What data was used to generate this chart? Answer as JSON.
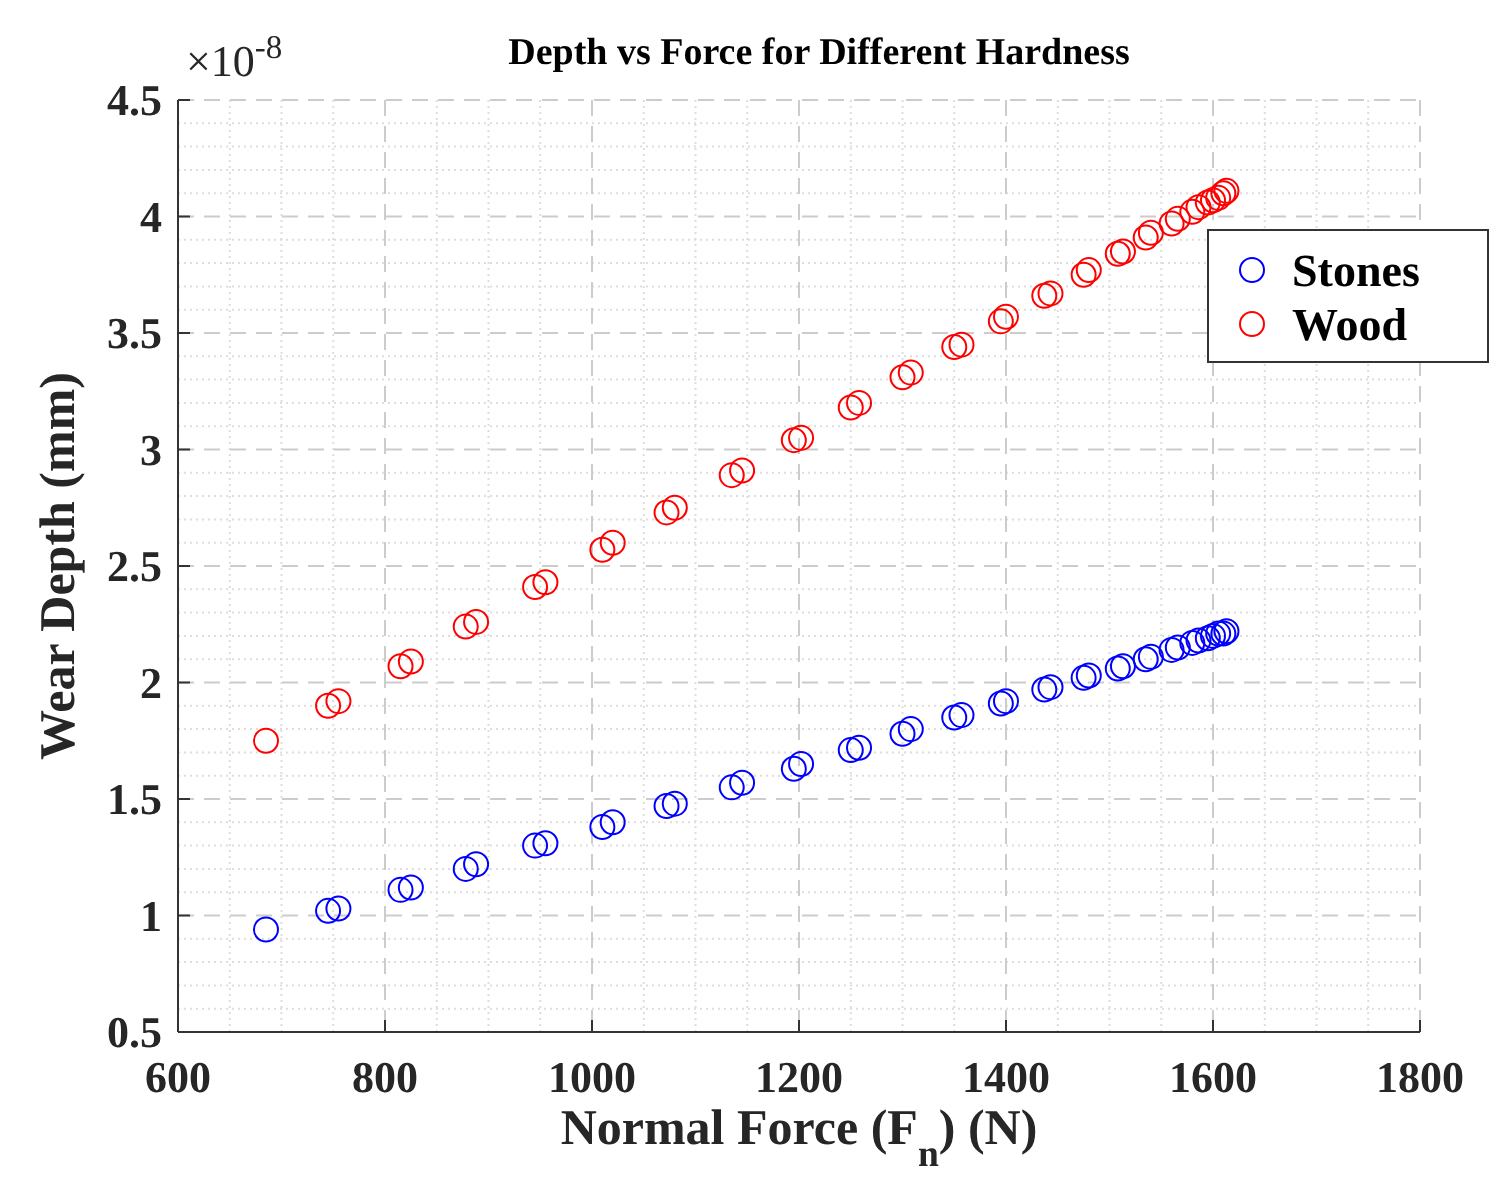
{
  "chart_data": {
    "type": "scatter",
    "title": "Depth vs Force for Different Hardness",
    "xlabel": "Normal Force (F$_{n}$) (N)",
    "ylabel": "Wear Depth (mm)",
    "annotations": [
      "×10$^{-8}$"
    ],
    "x": [
      685,
      745,
      755,
      815,
      825,
      878,
      888,
      945,
      955,
      1010,
      1020,
      1072,
      1080,
      1135,
      1145,
      1195,
      1202,
      1250,
      1258,
      1300,
      1308,
      1350,
      1357,
      1395,
      1400,
      1437,
      1443,
      1475,
      1480,
      1508,
      1513,
      1535,
      1540,
      1560,
      1566,
      1580,
      1586,
      1595,
      1600,
      1605,
      1610,
      1613
    ],
    "series": [
      {
        "name": "Stones",
        "color": "#0000ff",
        "values": [
          0.94,
          1.02,
          1.03,
          1.11,
          1.12,
          1.2,
          1.22,
          1.3,
          1.31,
          1.38,
          1.4,
          1.47,
          1.48,
          1.55,
          1.57,
          1.63,
          1.65,
          1.71,
          1.72,
          1.78,
          1.8,
          1.85,
          1.86,
          1.91,
          1.92,
          1.97,
          1.98,
          2.02,
          2.03,
          2.06,
          2.07,
          2.1,
          2.11,
          2.14,
          2.15,
          2.17,
          2.18,
          2.19,
          2.2,
          2.21,
          2.21,
          2.22
        ]
      },
      {
        "name": "Wood",
        "color": "#ff0000",
        "values": [
          1.75,
          1.9,
          1.92,
          2.07,
          2.09,
          2.24,
          2.26,
          2.41,
          2.43,
          2.57,
          2.6,
          2.73,
          2.75,
          2.89,
          2.91,
          3.04,
          3.05,
          3.18,
          3.2,
          3.31,
          3.33,
          3.44,
          3.45,
          3.55,
          3.57,
          3.66,
          3.67,
          3.75,
          3.77,
          3.84,
          3.85,
          3.91,
          3.93,
          3.97,
          3.99,
          4.02,
          4.04,
          4.06,
          4.07,
          4.08,
          4.1,
          4.11
        ]
      }
    ],
    "xlim": [
      600,
      1800
    ],
    "xticks": [
      600,
      800,
      1000,
      1200,
      1400,
      1600,
      1800
    ],
    "ylim": [
      0.5,
      4.5
    ],
    "yticks": [
      0.5,
      1,
      1.5,
      2,
      2.5,
      3,
      3.5,
      4,
      4.5
    ],
    "grid": true,
    "legend": "top right",
    "marker": "circle"
  }
}
